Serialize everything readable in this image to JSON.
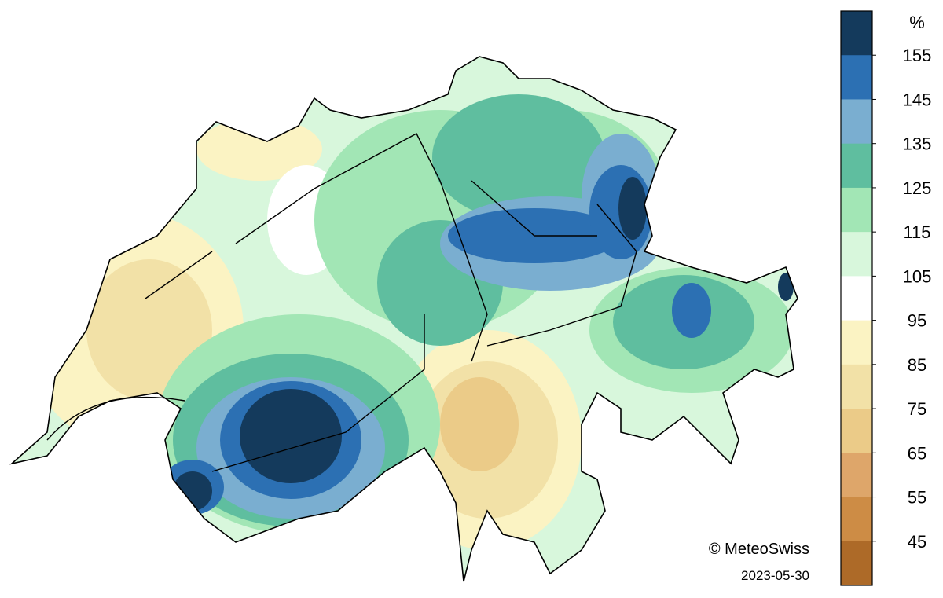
{
  "legend": {
    "unit": "%",
    "ticks": [
      155,
      145,
      135,
      125,
      115,
      105,
      95,
      85,
      75,
      65,
      55,
      45
    ],
    "colors": [
      "#143a5c",
      "#2c70b3",
      "#7aaed0",
      "#5fbe9f",
      "#a2e6b5",
      "#d8f7dc",
      "#ffffff",
      "#fbf3c3",
      "#f2e1a7",
      "#ebcb88",
      "#dea66a",
      "#cd8c45",
      "#ad6a28"
    ]
  },
  "credit": "© MeteoSwiss",
  "date": "2023-05-30"
}
